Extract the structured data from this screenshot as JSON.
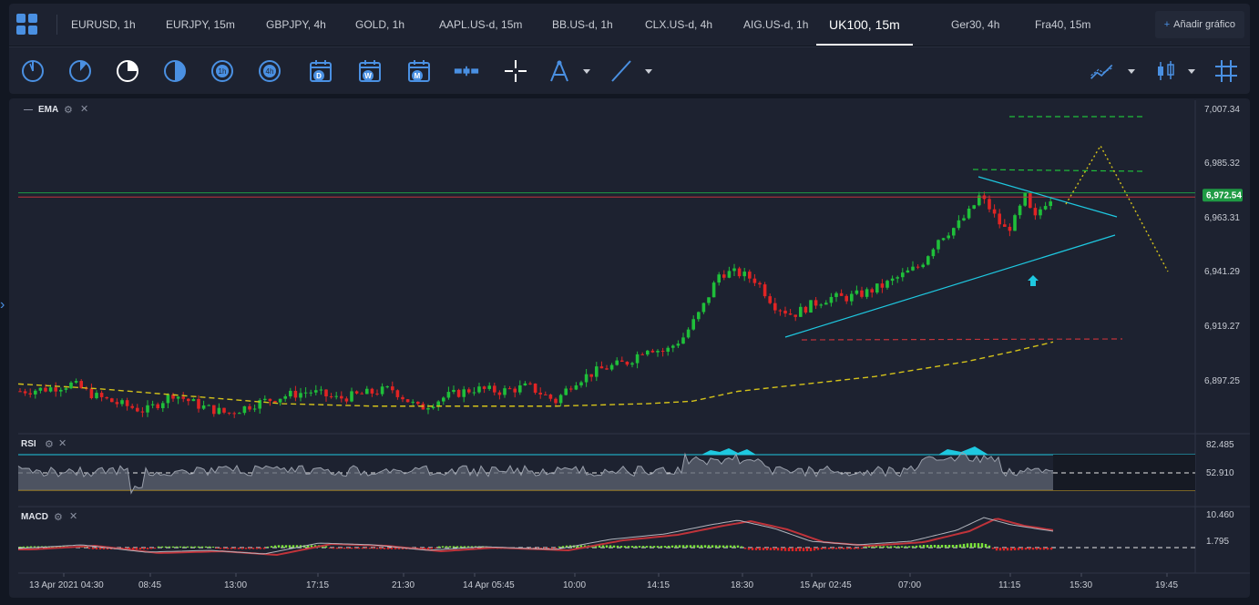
{
  "tabs": [
    {
      "label": "EURUSD, 1h",
      "active": false
    },
    {
      "label": "EURJPY, 15m",
      "active": false
    },
    {
      "label": "GBPJPY, 4h",
      "active": false
    },
    {
      "label": "GOLD, 1h",
      "active": false
    },
    {
      "label": "AAPL.US-d, 15m",
      "active": false
    },
    {
      "label": "BB.US-d, 1h",
      "active": false
    },
    {
      "label": "CLX.US-d, 4h",
      "active": false
    },
    {
      "label": "AIG.US-d, 1h",
      "active": false
    },
    {
      "label": "UK100, 15m",
      "active": true
    },
    {
      "label": "Ger30, 4h",
      "active": false
    },
    {
      "label": "Fra40, 15m",
      "active": false
    }
  ],
  "add_chart_label": "Añadir gráfico",
  "toolbar": {
    "timeframe_labels": [
      "1h",
      "4h",
      "D",
      "W",
      "M"
    ]
  },
  "indicators": {
    "ema": "EMA",
    "rsi": "RSI",
    "macd": "MACD"
  },
  "price_axis": [
    "7,007.34",
    "6,985.32",
    "6,963.31",
    "6,941.29",
    "6,919.27",
    "6,897.25"
  ],
  "current_price": "6,972.54",
  "rsi_axis": [
    "82.485",
    "52.910"
  ],
  "macd_axis": [
    "10.460",
    "1.795"
  ],
  "time_axis": [
    "13 Apr 2021 04:30",
    "08:45",
    "13:00",
    "17:15",
    "21:30",
    "14 Apr 05:45",
    "10:00",
    "14:15",
    "18:30",
    "15 Apr 02:45",
    "07:00",
    "11:15",
    "15:30",
    "19:45"
  ],
  "colors": {
    "bull": "#1fbf3a",
    "bear": "#e02424",
    "ema": "#d4c21a",
    "trend": "#1ec8e0",
    "accent": "#4a90e2"
  }
}
